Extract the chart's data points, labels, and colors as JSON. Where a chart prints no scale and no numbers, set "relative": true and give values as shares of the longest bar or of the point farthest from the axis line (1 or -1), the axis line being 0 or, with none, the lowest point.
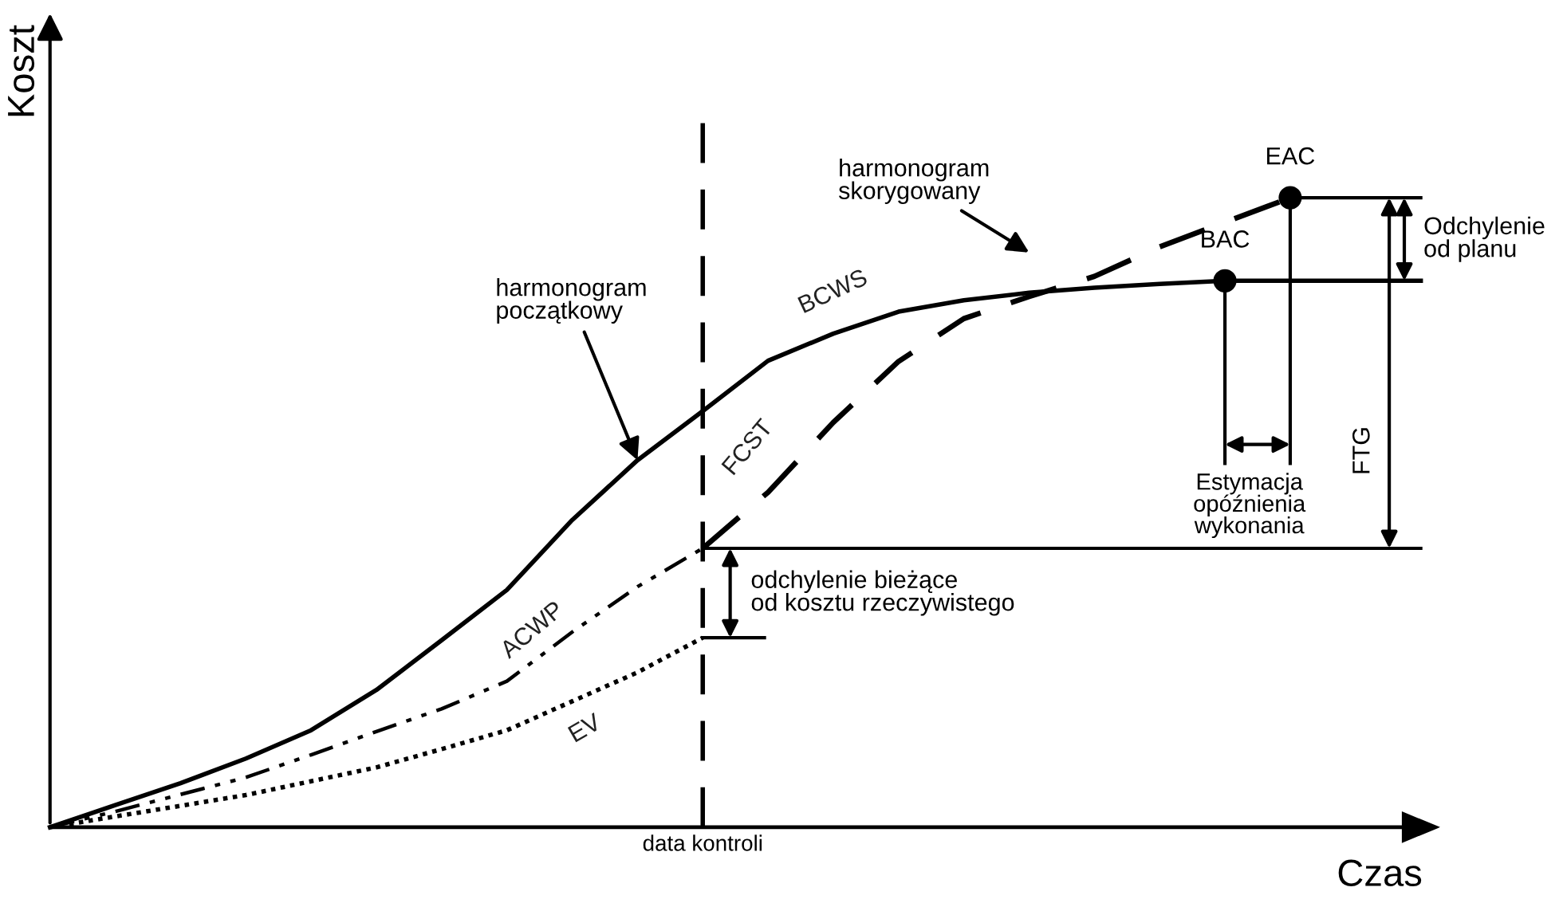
{
  "chart_data": {
    "type": "line",
    "relative": true,
    "xlabel": "Czas",
    "ylabel": "Koszt",
    "categories": [
      null,
      null,
      null,
      null,
      null,
      null,
      null,
      null,
      null,
      null,
      null,
      null,
      null,
      null,
      null,
      null,
      null,
      null,
      null,
      null,
      null,
      null
    ],
    "series": [
      {
        "name": "BCWS",
        "color": "#000000",
        "line_style": "solid",
        "values": [
          0,
          0.035,
          0.07,
          0.109,
          0.154,
          0.218,
          0.297,
          0.377,
          0.488,
          0.583,
          0.661,
          0.741,
          0.784,
          0.819,
          0.837,
          0.849,
          0.857,
          0.863,
          0.868,
          0.868,
          0.868,
          0.868
        ]
      },
      {
        "name": "FCST",
        "color": "#000000",
        "line_style": "dashed",
        "values": [
          null,
          null,
          null,
          null,
          null,
          null,
          null,
          null,
          null,
          null,
          0.443,
          0.532,
          0.643,
          0.74,
          0.808,
          0.843,
          0.875,
          0.922,
          0.961,
          1.0,
          null,
          null
        ]
      },
      {
        "name": "ACWP",
        "color": "#000000",
        "line_style": "dashdotdot",
        "values": [
          0,
          0.025,
          0.052,
          0.079,
          0.115,
          0.152,
          0.188,
          0.232,
          0.31,
          0.382,
          0.443,
          null,
          null,
          null,
          null,
          null,
          null,
          null,
          null,
          null,
          null,
          null
        ]
      },
      {
        "name": "EV",
        "color": "#000000",
        "line_style": "dotted",
        "values": [
          0,
          0.017,
          0.034,
          0.051,
          0.073,
          0.095,
          0.124,
          0.154,
          0.2,
          0.246,
          0.301,
          null,
          null,
          null,
          null,
          null,
          null,
          null,
          null,
          null,
          null,
          null
        ]
      }
    ],
    "ref_lines": [
      {
        "axis": "y",
        "value": 0.443,
        "color": "#000000",
        "line_style": "solid"
      }
    ],
    "annotations": [
      "data kontroli",
      "harmonogram\npoczątkowy",
      "harmonogram\nskorygowany",
      "BAC",
      "EAC",
      "odchylenie bieżące\nod kosztu rzeczywistego",
      "Estymacja\nopóźnienia\nwykonania",
      "FTG",
      "Odchylenie\nod planu"
    ]
  }
}
